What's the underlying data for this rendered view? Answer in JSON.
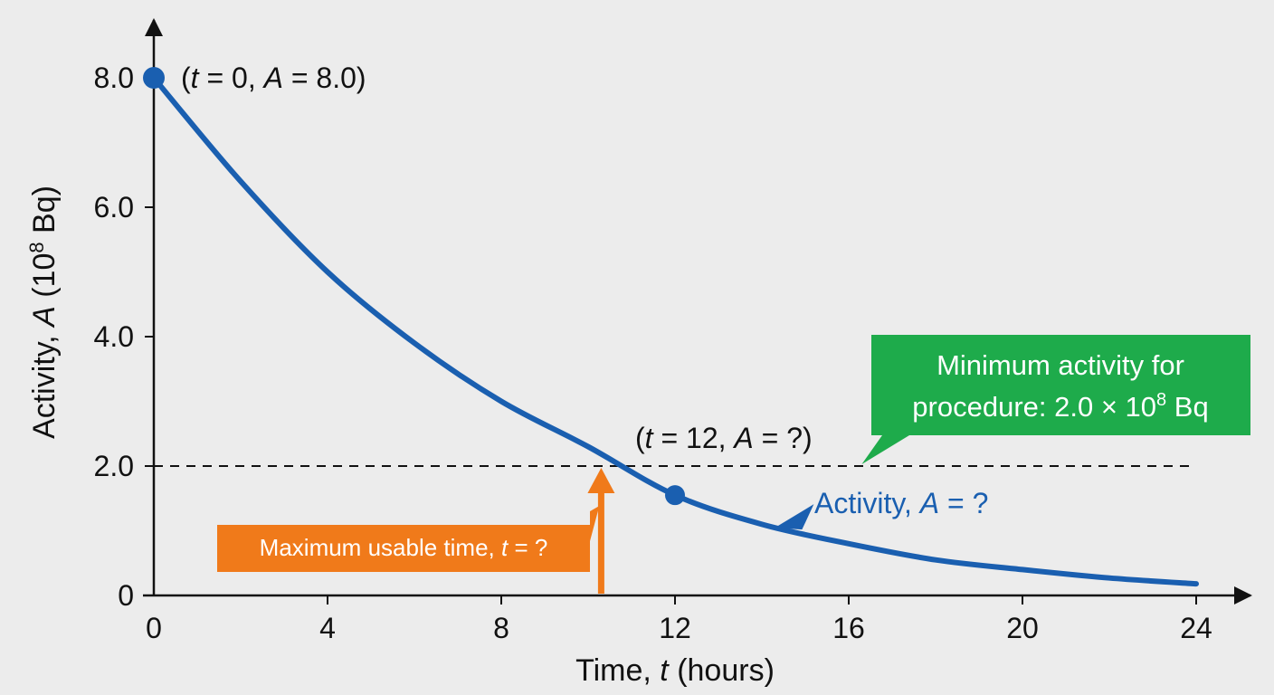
{
  "chart_data": {
    "type": "line",
    "xlabel": "Time, t (hours)",
    "ylabel": "Activity, A (10^8 Bq)",
    "xlim": [
      0,
      24
    ],
    "ylim": [
      0,
      8.0
    ],
    "x_ticks": [
      "0",
      "4",
      "8",
      "12",
      "16",
      "20",
      "24"
    ],
    "y_ticks": [
      "0",
      "2.0",
      "4.0",
      "6.0",
      "8.0"
    ],
    "grid": false,
    "series": [
      {
        "x": [
          0,
          2,
          4,
          6,
          8,
          10,
          12,
          14,
          16,
          18,
          20,
          22,
          24
        ],
        "values": [
          8.0,
          6.4,
          5.0,
          3.9,
          3.0,
          2.3,
          1.55,
          1.1,
          0.8,
          0.55,
          0.4,
          0.27,
          0.18
        ]
      }
    ],
    "threshold": {
      "y": 2.0
    },
    "points": [
      {
        "x": 0,
        "y": 8.0,
        "label": "(t = 0, A = 8.0)"
      },
      {
        "x": 12,
        "y": 1.55,
        "label": "(t = 12, A = ?)"
      }
    ],
    "intersection_x": 10.3,
    "activity_label_x": 14.3,
    "activity_label_y": 1.55,
    "annotations": {
      "min_activity_line1": "Minimum activity for",
      "min_activity_line2": "procedure: 2.0 × 10",
      "min_activity_exp": "8",
      "min_activity_unit": " Bq",
      "max_usable_time": "Maximum usable time, t = ?",
      "activity_query": "Activity, A = ?"
    },
    "colors": {
      "curve": "#1a5fb0",
      "callout_green": "#1eab4b",
      "callout_orange": "#f07a1a",
      "axis": "#111111",
      "background": "#ececec"
    }
  }
}
